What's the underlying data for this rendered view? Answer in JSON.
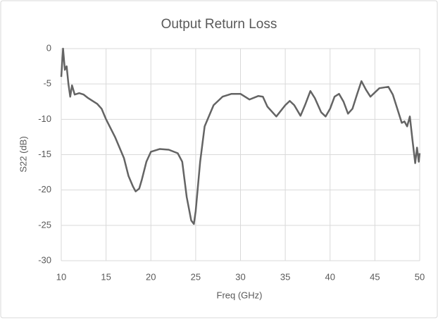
{
  "chart_data": {
    "type": "line",
    "title": "Output Return Loss",
    "x_label": "Freq (GHz)",
    "y_label": "S22 (dB)",
    "x": [
      10.0,
      10.2,
      10.4,
      10.6,
      10.8,
      11.0,
      11.2,
      11.5,
      12,
      12.5,
      13,
      14,
      14.5,
      15,
      16,
      17,
      17.5,
      18,
      18.3,
      18.7,
      19,
      19.5,
      20,
      21,
      22,
      23,
      23.5,
      24,
      24.5,
      24.8,
      25,
      25.5,
      26,
      27,
      28,
      29,
      30,
      31,
      32,
      32.5,
      33,
      34,
      35,
      35.5,
      36,
      36.7,
      37.2,
      37.8,
      38.3,
      39,
      39.5,
      40,
      40.5,
      41,
      41.5,
      42,
      42.5,
      43,
      43.5,
      44,
      44.5,
      45,
      45.5,
      46,
      46.5,
      47,
      47.5,
      48,
      48.3,
      48.6,
      48.9,
      49.2,
      49.5,
      49.7,
      49.9,
      50
    ],
    "series": [
      {
        "name": "S22",
        "color": "#646464",
        "values": [
          -4,
          0,
          -3,
          -2.5,
          -5,
          -6.8,
          -5.2,
          -6.5,
          -6.3,
          -6.5,
          -7,
          -7.8,
          -8.5,
          -10,
          -12.5,
          -15.5,
          -18,
          -19.5,
          -20.2,
          -19.8,
          -18.5,
          -16,
          -14.6,
          -14.2,
          -14.3,
          -14.8,
          -16,
          -21,
          -24.3,
          -24.8,
          -23,
          -16,
          -11,
          -8,
          -6.8,
          -6.4,
          -6.4,
          -7.2,
          -6.7,
          -6.8,
          -8.2,
          -9.6,
          -8,
          -7.4,
          -8,
          -9.5,
          -8,
          -6,
          -7,
          -9,
          -9.6,
          -8.5,
          -6.8,
          -6.4,
          -7.5,
          -9.2,
          -8.5,
          -6.5,
          -4.6,
          -5.8,
          -6.8,
          -6.2,
          -5.6,
          -5.5,
          -5.4,
          -6.5,
          -8.5,
          -10.5,
          -10.3,
          -11,
          -9.6,
          -13,
          -16.2,
          -14,
          -16,
          -14.8
        ]
      }
    ],
    "xlim": [
      10,
      50
    ],
    "xticks": [
      10,
      15,
      20,
      25,
      30,
      35,
      40,
      45,
      50
    ],
    "ylim": [
      -30,
      0
    ],
    "yticks": [
      -30,
      -25,
      -20,
      -15,
      -10,
      -5,
      0
    ],
    "grid": true
  }
}
